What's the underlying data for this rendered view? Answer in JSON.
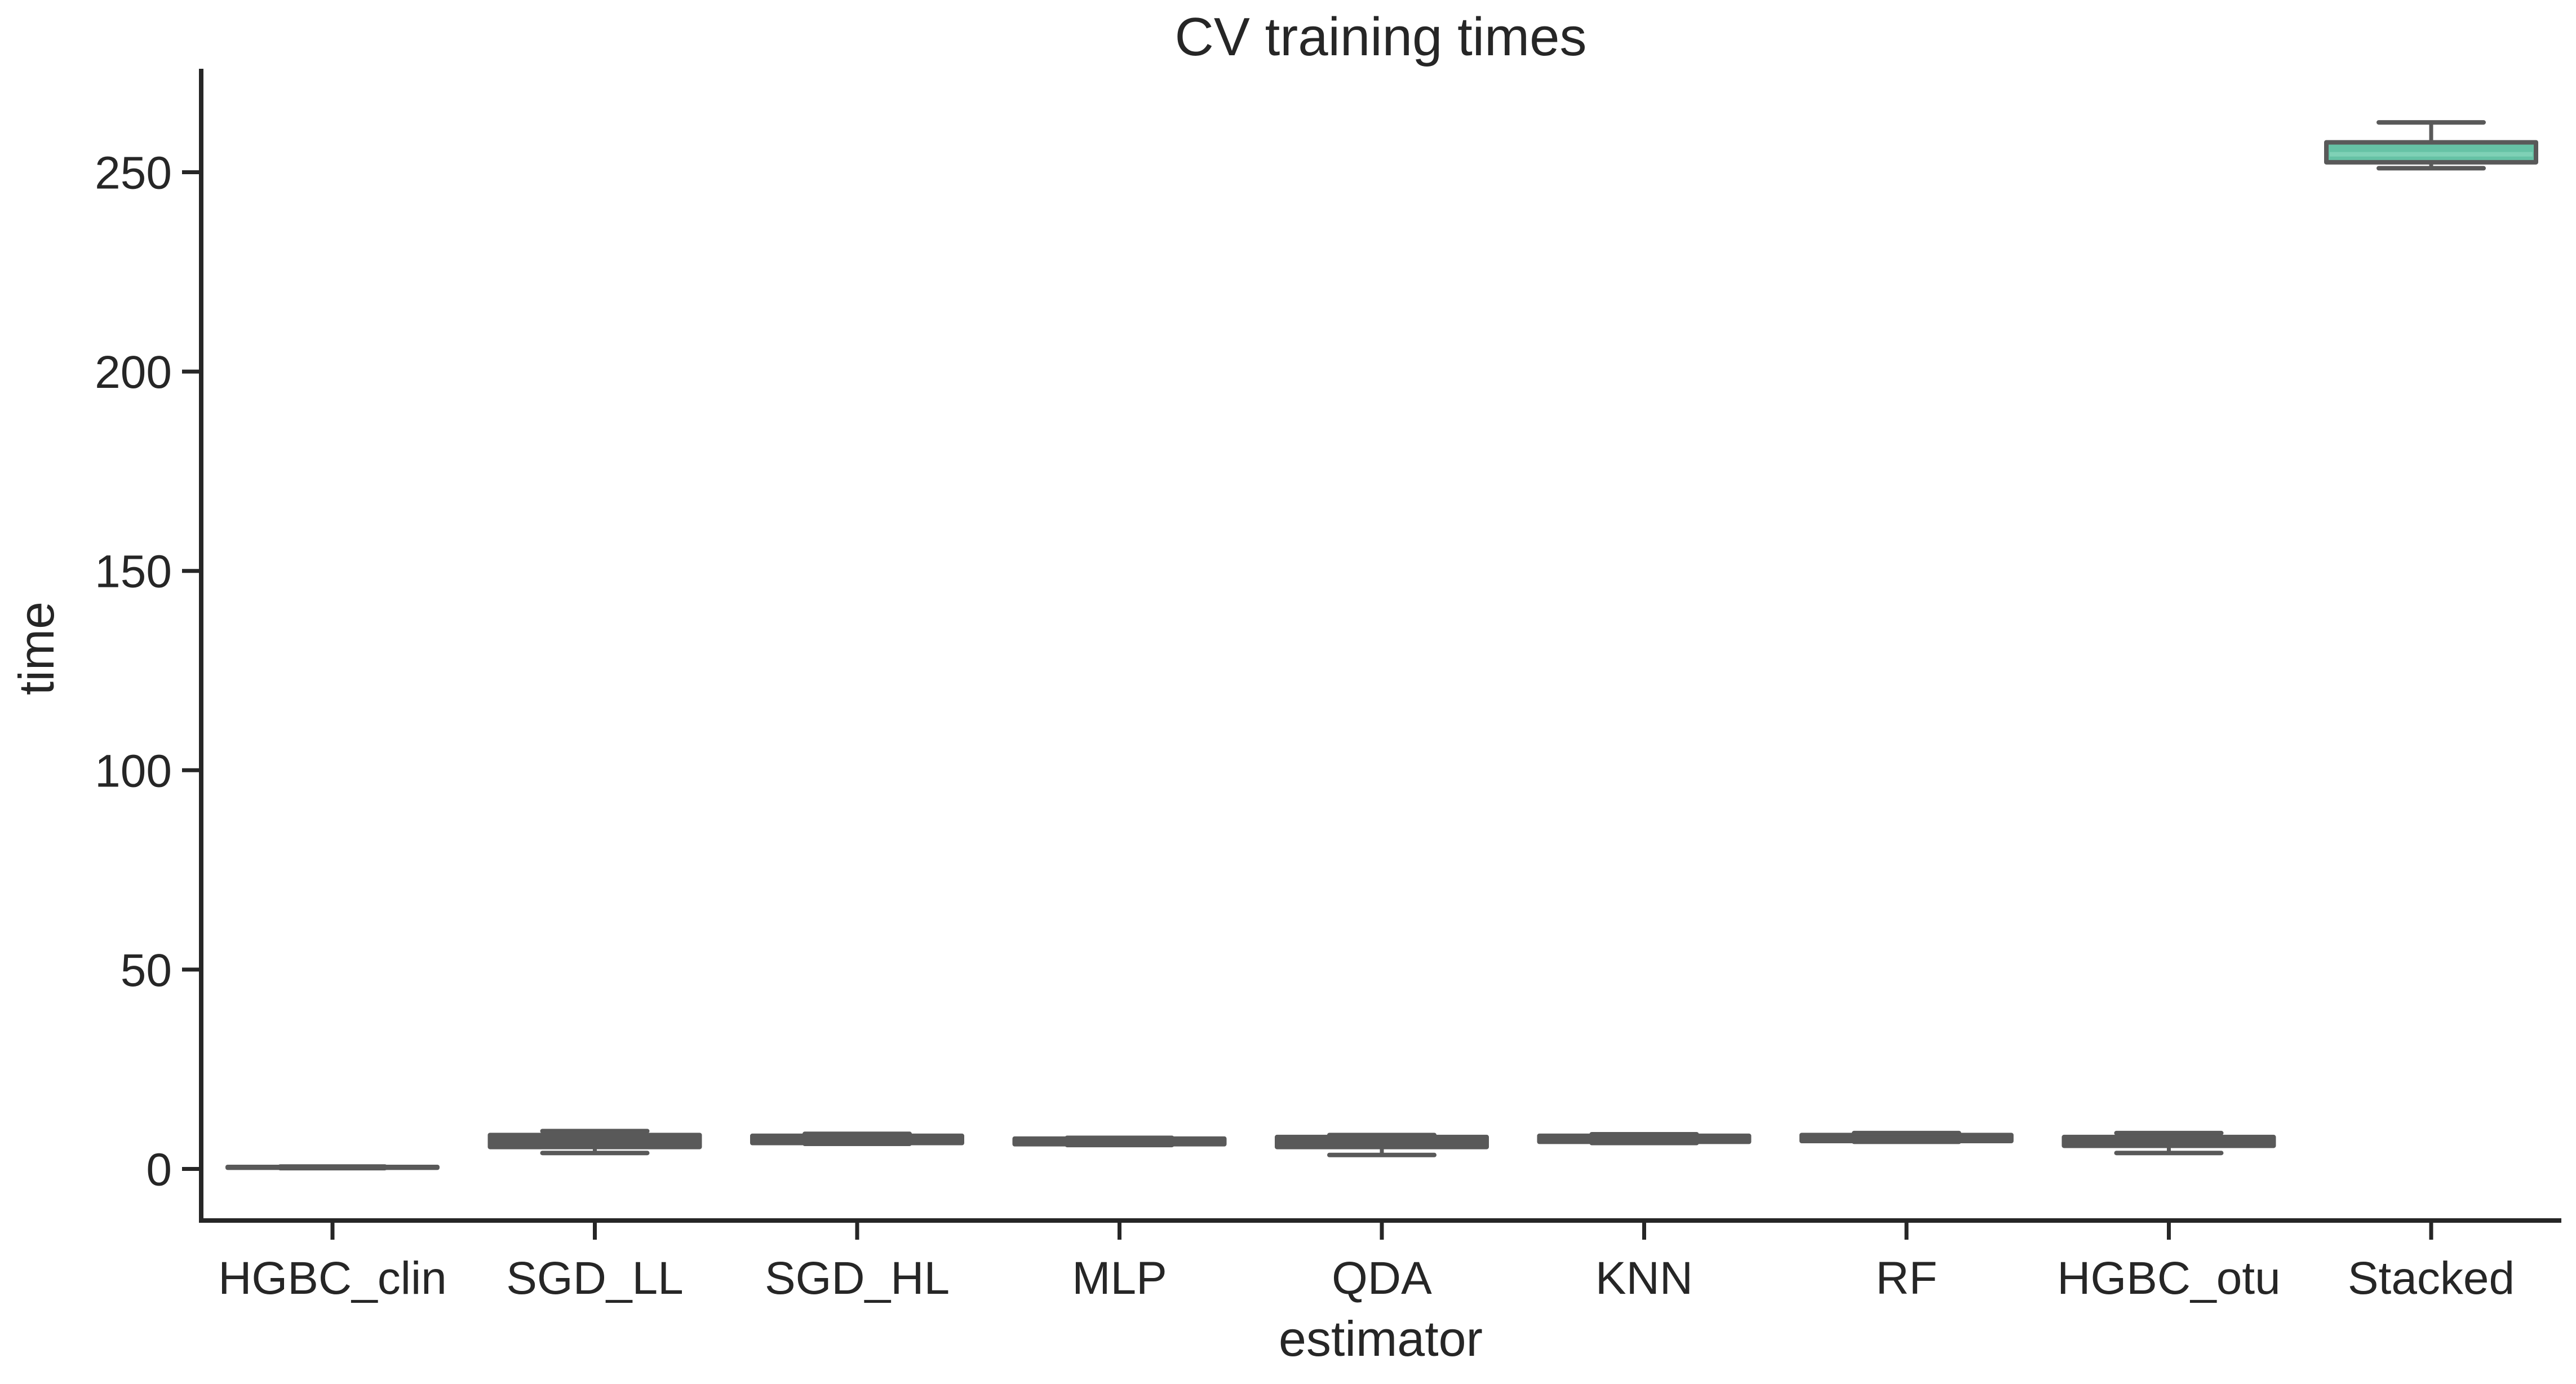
{
  "chart_data": {
    "type": "box",
    "title": "CV training times",
    "xlabel": "estimator",
    "ylabel": "time",
    "ylim": [
      -13,
      276
    ],
    "yticks": [
      0,
      50,
      100,
      150,
      200,
      250
    ],
    "grid": false,
    "legend": "none",
    "categories": [
      "HGBC_clin",
      "SGD_LL",
      "SGD_HL",
      "MLP",
      "QDA",
      "KNN",
      "RF",
      "HGBC_otu",
      "Stacked"
    ],
    "boxes": [
      {
        "whislo": 0.2,
        "q1": 0.3,
        "med": 0.4,
        "q3": 0.5,
        "whishi": 0.6
      },
      {
        "whislo": 4.0,
        "q1": 5.5,
        "med": 7.5,
        "q3": 8.5,
        "whishi": 9.5
      },
      {
        "whislo": 6.3,
        "q1": 6.5,
        "med": 7.5,
        "q3": 8.3,
        "whishi": 8.8
      },
      {
        "whislo": 6.0,
        "q1": 6.2,
        "med": 7.0,
        "q3": 7.6,
        "whishi": 7.8
      },
      {
        "whislo": 3.5,
        "q1": 5.5,
        "med": 6.5,
        "q3": 8.0,
        "whishi": 8.5
      },
      {
        "whislo": 6.5,
        "q1": 6.8,
        "med": 7.5,
        "q3": 8.3,
        "whishi": 8.7
      },
      {
        "whislo": 6.8,
        "q1": 7.0,
        "med": 7.8,
        "q3": 8.5,
        "whishi": 9.0
      },
      {
        "whislo": 4.0,
        "q1": 5.8,
        "med": 7.0,
        "q3": 8.0,
        "whishi": 9.0
      },
      {
        "whislo": 251,
        "q1": 252.5,
        "med": 254.5,
        "q3": 257.5,
        "whishi": 262.5
      }
    ],
    "colors": {
      "box_edge": "#595959",
      "stacked_fill": "#66c2a5",
      "axis": "#262626",
      "text": "#262626"
    }
  }
}
